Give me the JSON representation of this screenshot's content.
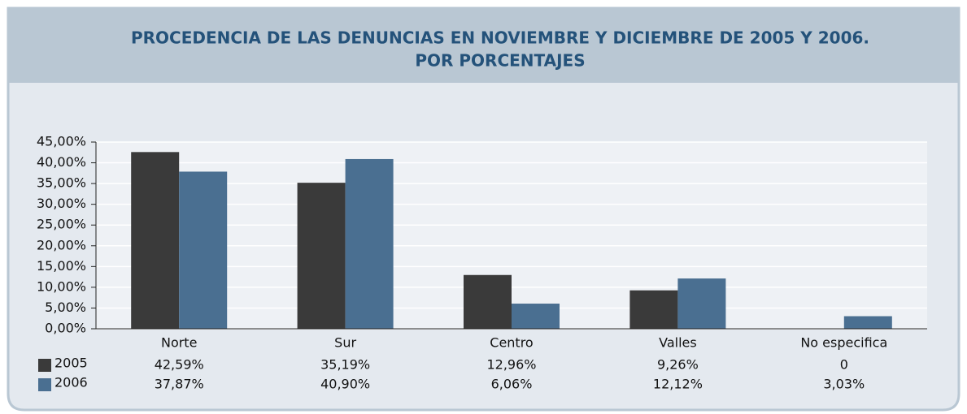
{
  "chart_data": {
    "type": "bar",
    "title": [
      "PROCEDENCIA DE LAS DENUNCIAS EN NOVIEMBRE Y DICIEMBRE DE 2005 Y 2006.",
      "POR PORCENTAJES"
    ],
    "categories": [
      "Norte",
      "Sur",
      "Centro",
      "Valles",
      "No especifica"
    ],
    "series": [
      {
        "name": "2005",
        "color": "#3a3a3a",
        "values": [
          42.59,
          35.19,
          12.96,
          9.26,
          0
        ],
        "value_labels": [
          "42,59%",
          "35,19%",
          "12,96%",
          "9,26%",
          "0"
        ]
      },
      {
        "name": "2006",
        "color": "#4a6f91",
        "values": [
          37.87,
          40.9,
          6.06,
          12.12,
          3.03
        ],
        "value_labels": [
          "37,87%",
          "40,90%",
          "6,06%",
          "12,12%",
          "3,03%"
        ]
      }
    ],
    "ylim": [
      0,
      45
    ],
    "yticks": [
      {
        "value": 0,
        "label": "0,00%"
      },
      {
        "value": 5,
        "label": "5,00%"
      },
      {
        "value": 10,
        "label": "10,00%"
      },
      {
        "value": 15,
        "label": "15,00%"
      },
      {
        "value": 20,
        "label": "20,00%"
      },
      {
        "value": 25,
        "label": "25,00%"
      },
      {
        "value": 30,
        "label": "30,00%"
      },
      {
        "value": 35,
        "label": "35,00%"
      },
      {
        "value": 40,
        "label": "40,00%"
      },
      {
        "value": 45,
        "label": "45,00%"
      }
    ],
    "grid": true
  }
}
